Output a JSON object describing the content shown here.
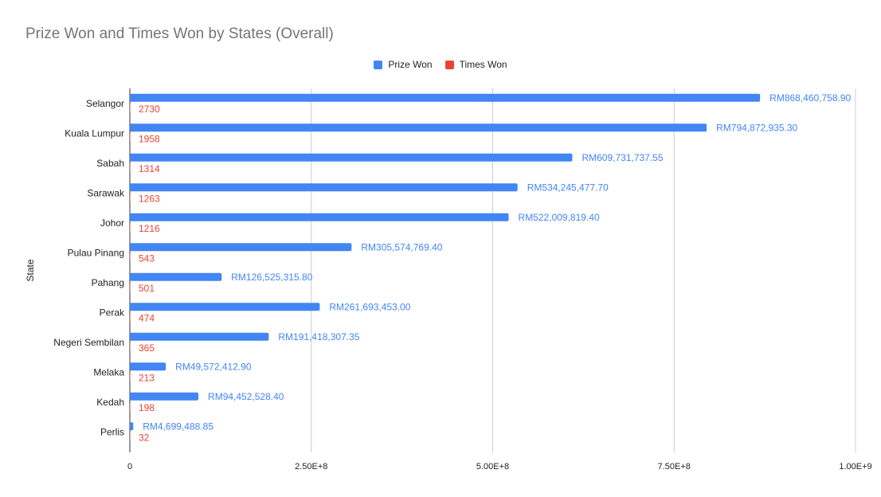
{
  "chart_data": {
    "type": "bar",
    "orientation": "horizontal",
    "title": "Prize Won and Times Won by States (Overall)",
    "ylabel": "State",
    "xlabel": "",
    "xlim": [
      0,
      1000000000
    ],
    "x_ticks": [
      0,
      250000000,
      500000000,
      750000000,
      1000000000
    ],
    "x_tick_labels": [
      "0",
      "2.50E+8",
      "5.00E+8",
      "7.50E+8",
      "1.00E+9"
    ],
    "grid": "vertical",
    "legend_position": "top",
    "categories": [
      "Selangor",
      "Kuala Lumpur",
      "Sabah",
      "Sarawak",
      "Johor",
      "Pulau Pinang",
      "Pahang",
      "Perak",
      "Negeri Sembilan",
      "Melaka",
      "Kedah",
      "Perlis"
    ],
    "series": [
      {
        "name": "Prize Won",
        "color": "#4285f4",
        "values": [
          868460758.9,
          794872935.3,
          609731737.55,
          534245477.7,
          522009819.4,
          305574769.4,
          126525315.8,
          261693453.0,
          191418307.35,
          49572412.9,
          94452528.4,
          4699488.85
        ],
        "labels": [
          "RM868,460,758.90",
          "RM794,872,935.30",
          "RM609,731,737.55",
          "RM534,245,477.70",
          "RM522,009,819.40",
          "RM305,574,769.40",
          "RM126,525,315.80",
          "RM261,693,453.00",
          "RM191,418,307.35",
          "RM49,572,412.90",
          "RM94,452,528.40",
          "RM4,699,488.85"
        ]
      },
      {
        "name": "Times Won",
        "color": "#ea4335",
        "values": [
          2730,
          1958,
          1314,
          1263,
          1216,
          543,
          501,
          474,
          365,
          213,
          198,
          32
        ],
        "labels": [
          "2730",
          "1958",
          "1314",
          "1263",
          "1216",
          "543",
          "501",
          "474",
          "365",
          "213",
          "198",
          "32"
        ]
      }
    ]
  }
}
